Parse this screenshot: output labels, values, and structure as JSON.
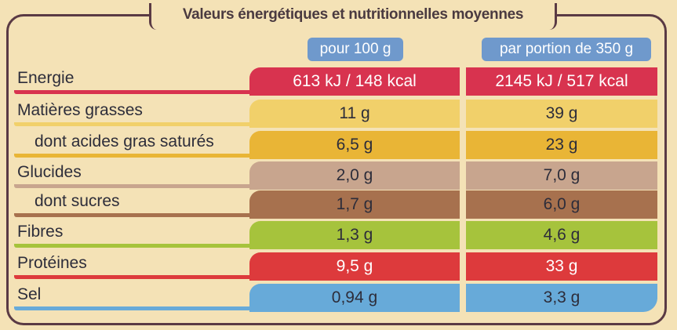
{
  "title": "Valeurs énergétiques et nutritionnelles moyennes",
  "columns": [
    "pour 100 g",
    "par portion de 350 g"
  ],
  "rows": [
    {
      "label": "Energie",
      "v1": "613 kJ / 148 kcal",
      "v2": "2145 kJ / 517 kcal",
      "color": "#d8334f"
    },
    {
      "label": "Matières grasses",
      "v1": "11 g",
      "v2": "39 g",
      "color": "#f1d06a"
    },
    {
      "label": "dont acides gras saturés",
      "v1": "6,5 g",
      "v2": "23 g",
      "color": "#e9b536"
    },
    {
      "label": "Glucides",
      "v1": "2,0 g",
      "v2": "7,0 g",
      "color": "#c8a58e"
    },
    {
      "label": "dont sucres",
      "v1": "1,7 g",
      "v2": "6,0 g",
      "color": "#a7714e"
    },
    {
      "label": "Fibres",
      "v1": "1,3 g",
      "v2": "4,6 g",
      "color": "#a6c33c"
    },
    {
      "label": "Protéines",
      "v1": "9,5 g",
      "v2": "33 g",
      "color": "#dd3a3c"
    },
    {
      "label": "Sel",
      "v1": "0,94 g",
      "v2": "3,3 g",
      "color": "#67aad9"
    }
  ]
}
